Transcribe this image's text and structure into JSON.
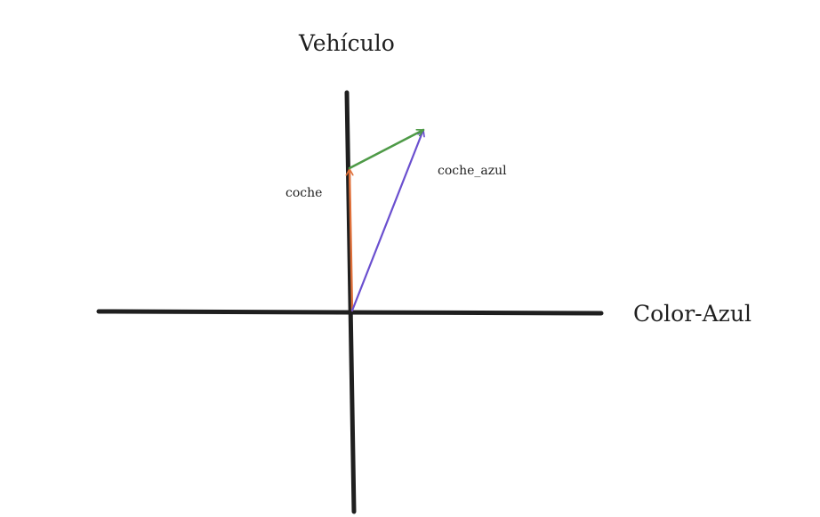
{
  "axes": {
    "vertical_label": "Vehículo",
    "horizontal_label": "Color-Azul",
    "color": "#1f1f1f"
  },
  "vectors": [
    {
      "id": "coche",
      "label": "coche",
      "color": "#e0713b"
    },
    {
      "id": "coche_azul",
      "label": "coche_azul",
      "color": "#6a4fcf"
    },
    {
      "id": "difference",
      "label": "",
      "color": "#4e9a47"
    }
  ]
}
